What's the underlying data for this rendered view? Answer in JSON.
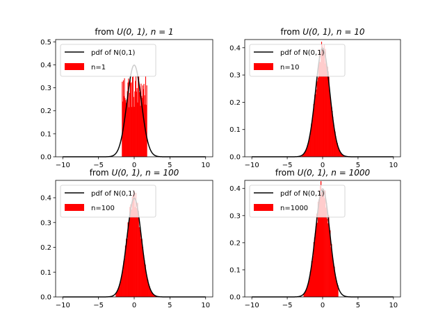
{
  "chart_data": [
    {
      "type": "bar",
      "title": "from U(0,1), n = 1",
      "title_prefix": "from ",
      "title_math": "U(0, 1), n = 1",
      "xlim": [
        -11,
        11
      ],
      "ylim": [
        0,
        0.51
      ],
      "xticks": [
        -10,
        -5,
        0,
        5,
        10
      ],
      "yticks": [
        0.0,
        0.1,
        0.2,
        0.3,
        0.4,
        0.5
      ],
      "hist_range": [
        -1.73,
        1.73
      ],
      "bin_width": 0.08,
      "hist_shape": "uniform",
      "hist_level": 0.29,
      "hist_max": 0.35,
      "legend": [
        "pdf of N(0,1)",
        "n=1"
      ],
      "series": [
        {
          "name": "pdf of N(0,1)",
          "kind": "line",
          "color": "#000000"
        },
        {
          "name": "n=1",
          "kind": "histogram",
          "color": "#ff0000"
        }
      ]
    },
    {
      "type": "bar",
      "title": "from U(0,1), n = 10",
      "title_prefix": "from ",
      "title_math": "U(0, 1), n = 10",
      "xlim": [
        -11,
        11
      ],
      "ylim": [
        0,
        0.43
      ],
      "xticks": [
        -10,
        -5,
        0,
        5,
        10
      ],
      "yticks": [
        0.0,
        0.1,
        0.2,
        0.3,
        0.4
      ],
      "hist_range": [
        -3.0,
        3.0
      ],
      "bin_width": 0.08,
      "hist_shape": "normal",
      "legend": [
        "pdf of N(0,1)",
        "n=10"
      ],
      "series": [
        {
          "name": "pdf of N(0,1)",
          "kind": "line",
          "color": "#000000"
        },
        {
          "name": "n=10",
          "kind": "histogram",
          "color": "#ff0000"
        }
      ]
    },
    {
      "type": "bar",
      "title": "from U(0,1), n = 100",
      "title_prefix": "from ",
      "title_math": "U(0, 1), n = 100",
      "xlim": [
        -11,
        11
      ],
      "ylim": [
        0,
        0.47
      ],
      "xticks": [
        -10,
        -5,
        0,
        5,
        10
      ],
      "yticks": [
        0.0,
        0.1,
        0.2,
        0.3,
        0.4
      ],
      "hist_range": [
        -2.6,
        3.3
      ],
      "bin_width": 0.12,
      "hist_shape": "normal",
      "legend": [
        "pdf of N(0,1)",
        "n=100"
      ],
      "series": [
        {
          "name": "pdf of N(0,1)",
          "kind": "line",
          "color": "#000000"
        },
        {
          "name": "n=100",
          "kind": "histogram",
          "color": "#ff0000"
        }
      ]
    },
    {
      "type": "bar",
      "title": "from U(0,1), n = 1000",
      "title_prefix": "from ",
      "title_math": "U(0, 1), n = 1000",
      "xlim": [
        -11,
        11
      ],
      "ylim": [
        0,
        0.43
      ],
      "xticks": [
        -10,
        -5,
        0,
        5,
        10
      ],
      "yticks": [
        0.0,
        0.1,
        0.2,
        0.3,
        0.4
      ],
      "hist_range": [
        -2.7,
        2.2
      ],
      "bin_width": 0.1,
      "hist_shape": "normal",
      "legend": [
        "pdf of N(0,1)",
        "n=1000"
      ],
      "series": [
        {
          "name": "pdf of N(0,1)",
          "kind": "line",
          "color": "#000000"
        },
        {
          "name": "n=1000",
          "kind": "histogram",
          "color": "#ff0000"
        }
      ]
    }
  ]
}
